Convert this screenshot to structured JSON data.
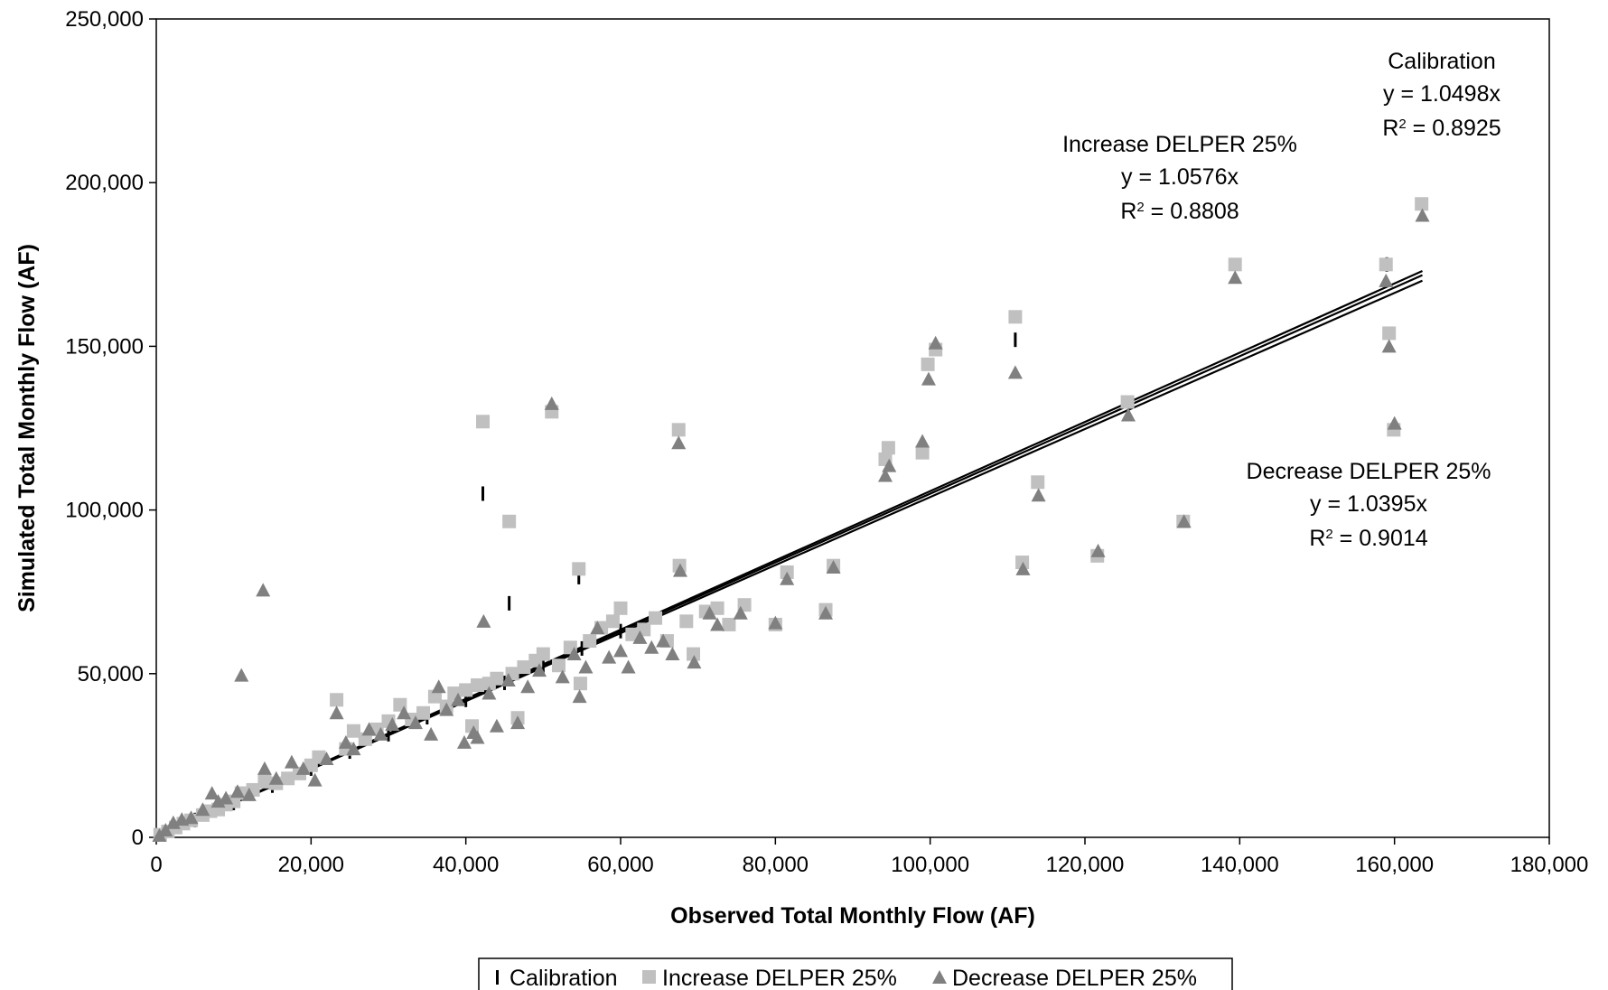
{
  "chart_data": {
    "type": "scatter",
    "xlabel": "Observed Total Monthly Flow (AF)",
    "ylabel": "Simulated Total Monthly Flow (AF)",
    "xlim": [
      0,
      180000
    ],
    "ylim": [
      0,
      250000
    ],
    "x_ticks": [
      "0",
      "20,000",
      "40,000",
      "60,000",
      "80,000",
      "100,000",
      "120,000",
      "140,000",
      "160,000",
      "180,000"
    ],
    "y_ticks": [
      "0",
      "50,000",
      "100,000",
      "150,000",
      "200,000",
      "250,000"
    ],
    "grid": false,
    "legend_position": "bottom",
    "series": [
      {
        "name": "Calibration",
        "marker": "dash",
        "color": "#000000",
        "slope": 1.0498,
        "equation": "y = 1.0498x",
        "r2_label": "R",
        "r2_value": " = 0.8925",
        "points": [
          [
            42200,
            105000
          ],
          [
            45600,
            71500
          ],
          [
            54600,
            79500
          ],
          [
            111000,
            152000
          ],
          [
            159000,
            175000
          ],
          [
            1000,
            1000
          ],
          [
            5000,
            5300
          ],
          [
            10000,
            10500
          ],
          [
            15000,
            15800
          ],
          [
            20000,
            21000
          ],
          [
            25000,
            26200
          ],
          [
            30000,
            31500
          ],
          [
            35000,
            36700
          ],
          [
            40000,
            42000
          ],
          [
            45000,
            47200
          ],
          [
            50000,
            52500
          ],
          [
            55000,
            57700
          ],
          [
            60000,
            63000
          ]
        ]
      },
      {
        "name": "Increase DELPER 25%",
        "marker": "square",
        "color": "#c0c0c0",
        "slope": 1.0576,
        "equation": "y = 1.0576x",
        "r2_label": "R",
        "r2_value": " = 0.8808",
        "points": [
          [
            500,
            800
          ],
          [
            1500,
            1800
          ],
          [
            2500,
            3000
          ],
          [
            3500,
            4200
          ],
          [
            4500,
            5200
          ],
          [
            6000,
            6800
          ],
          [
            7000,
            8000
          ],
          [
            8000,
            8500
          ],
          [
            9000,
            10000
          ],
          [
            10000,
            11000
          ],
          [
            11000,
            13500
          ],
          [
            12500,
            14500
          ],
          [
            14000,
            17000
          ],
          [
            15500,
            16500
          ],
          [
            17000,
            18000
          ],
          [
            18500,
            19500
          ],
          [
            20000,
            22000
          ],
          [
            21000,
            24500
          ],
          [
            23300,
            42000
          ],
          [
            24500,
            27000
          ],
          [
            25500,
            32500
          ],
          [
            27000,
            30000
          ],
          [
            28500,
            33000
          ],
          [
            30000,
            35500
          ],
          [
            31500,
            40500
          ],
          [
            33000,
            36000
          ],
          [
            34500,
            38000
          ],
          [
            36000,
            43000
          ],
          [
            37500,
            40000
          ],
          [
            38500,
            44000
          ],
          [
            40000,
            45000
          ],
          [
            40800,
            34000
          ],
          [
            41500,
            46500
          ],
          [
            42200,
            127000
          ],
          [
            43000,
            47000
          ],
          [
            44000,
            48500
          ],
          [
            45600,
            96500
          ],
          [
            46000,
            50000
          ],
          [
            46700,
            36500
          ],
          [
            47500,
            52000
          ],
          [
            49000,
            54000
          ],
          [
            50000,
            56000
          ],
          [
            51100,
            130000
          ],
          [
            52000,
            52500
          ],
          [
            53500,
            58000
          ],
          [
            54600,
            82000
          ],
          [
            54800,
            47000
          ],
          [
            56000,
            60000
          ],
          [
            57500,
            64000
          ],
          [
            59000,
            66000
          ],
          [
            60000,
            70000
          ],
          [
            61500,
            62000
          ],
          [
            63000,
            63500
          ],
          [
            64500,
            67000
          ],
          [
            66000,
            60000
          ],
          [
            67500,
            124500
          ],
          [
            67600,
            83000
          ],
          [
            68500,
            66000
          ],
          [
            69400,
            56000
          ],
          [
            71000,
            69000
          ],
          [
            72500,
            70000
          ],
          [
            74000,
            65000
          ],
          [
            76000,
            71000
          ],
          [
            80000,
            65000
          ],
          [
            81500,
            81000
          ],
          [
            86500,
            69500
          ],
          [
            87500,
            83000
          ],
          [
            94200,
            115500
          ],
          [
            94600,
            119000
          ],
          [
            99000,
            117500
          ],
          [
            99700,
            144500
          ],
          [
            100700,
            149000
          ],
          [
            111000,
            159000
          ],
          [
            111900,
            84000
          ],
          [
            113900,
            108500
          ],
          [
            121600,
            86000
          ],
          [
            125500,
            133000
          ],
          [
            132700,
            96500
          ],
          [
            139400,
            175000
          ],
          [
            158900,
            175000
          ],
          [
            159300,
            154000
          ],
          [
            159900,
            124500
          ],
          [
            163500,
            193500
          ]
        ]
      },
      {
        "name": "Decrease DELPER 25%",
        "marker": "triangle",
        "color": "#808080",
        "slope": 1.0395,
        "equation": "y = 1.0395x",
        "r2_label": "R",
        "r2_value": " = 0.9014",
        "points": [
          [
            400,
            600
          ],
          [
            1200,
            2200
          ],
          [
            2200,
            4500
          ],
          [
            3300,
            5500
          ],
          [
            4500,
            6000
          ],
          [
            6000,
            8500
          ],
          [
            7200,
            13500
          ],
          [
            8000,
            11000
          ],
          [
            9000,
            12000
          ],
          [
            10500,
            14000
          ],
          [
            11000,
            49500
          ],
          [
            12000,
            13000
          ],
          [
            13800,
            75500
          ],
          [
            14000,
            21000
          ],
          [
            15500,
            18000
          ],
          [
            17500,
            23000
          ],
          [
            19000,
            21000
          ],
          [
            20500,
            17500
          ],
          [
            22000,
            24000
          ],
          [
            23300,
            38000
          ],
          [
            24500,
            29000
          ],
          [
            25500,
            27000
          ],
          [
            27500,
            33000
          ],
          [
            29000,
            31500
          ],
          [
            30500,
            34500
          ],
          [
            32000,
            38000
          ],
          [
            33500,
            35000
          ],
          [
            35500,
            31500
          ],
          [
            36500,
            46000
          ],
          [
            37500,
            39000
          ],
          [
            39000,
            42000
          ],
          [
            39800,
            29000
          ],
          [
            41000,
            32000
          ],
          [
            41500,
            30500
          ],
          [
            42300,
            66000
          ],
          [
            43000,
            44000
          ],
          [
            44000,
            34000
          ],
          [
            45500,
            48000
          ],
          [
            46700,
            35000
          ],
          [
            48000,
            46000
          ],
          [
            49500,
            51000
          ],
          [
            51100,
            132500
          ],
          [
            52500,
            49000
          ],
          [
            54000,
            56000
          ],
          [
            54700,
            43000
          ],
          [
            55500,
            52000
          ],
          [
            57000,
            64000
          ],
          [
            58500,
            55000
          ],
          [
            60000,
            57000
          ],
          [
            61000,
            52000
          ],
          [
            62500,
            61000
          ],
          [
            64000,
            58000
          ],
          [
            65500,
            60000
          ],
          [
            66700,
            56000
          ],
          [
            67500,
            120500
          ],
          [
            67700,
            81500
          ],
          [
            69500,
            53500
          ],
          [
            71500,
            68500
          ],
          [
            72500,
            65000
          ],
          [
            75500,
            68500
          ],
          [
            80000,
            65500
          ],
          [
            81500,
            79000
          ],
          [
            86500,
            68500
          ],
          [
            87500,
            82500
          ],
          [
            94200,
            110500
          ],
          [
            94700,
            113500
          ],
          [
            99000,
            121000
          ],
          [
            99800,
            140000
          ],
          [
            100700,
            151000
          ],
          [
            111000,
            142000
          ],
          [
            112000,
            82000
          ],
          [
            114000,
            104500
          ],
          [
            121700,
            87500
          ],
          [
            125600,
            129000
          ],
          [
            132800,
            96500
          ],
          [
            139400,
            171000
          ],
          [
            158900,
            170000
          ],
          [
            159300,
            150000
          ],
          [
            160000,
            126500
          ],
          [
            163600,
            190000
          ]
        ]
      }
    ],
    "annotations": [
      {
        "series": 0,
        "title": "Calibration"
      },
      {
        "series": 1,
        "title": "Increase DELPER 25%"
      },
      {
        "series": 2,
        "title": "Decrease DELPER 25%"
      }
    ]
  }
}
